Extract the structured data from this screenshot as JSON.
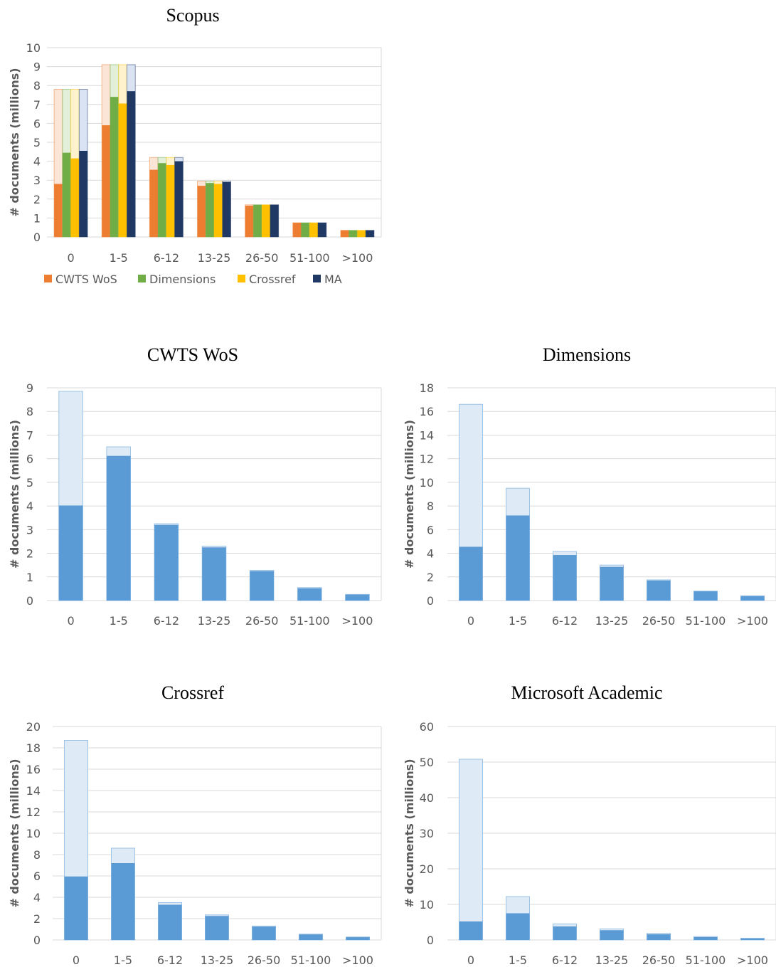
{
  "chart_data": [
    {
      "id": "scopus",
      "type": "bar",
      "title": "Scopus",
      "ylabel": "# documents (millions)",
      "xlabel": "",
      "ylim": [
        0,
        10
      ],
      "ystep": 1,
      "grid": true,
      "stacked_overlay": true,
      "categories": [
        "0",
        "1-5",
        "6-12",
        "13-25",
        "26-50",
        "51-100",
        ">100"
      ],
      "total": [
        7.8,
        9.1,
        4.2,
        2.95,
        1.7,
        0.75,
        0.35
      ],
      "series": [
        {
          "name": "CWTS WoS",
          "color": "#ED7D31",
          "light": "#FBE5D6",
          "values": [
            2.8,
            5.9,
            3.55,
            2.7,
            1.65,
            0.75,
            0.35
          ]
        },
        {
          "name": "Dimensions",
          "color": "#70AD47",
          "light": "#E2F0D9",
          "values": [
            4.45,
            7.4,
            3.9,
            2.85,
            1.7,
            0.75,
            0.35
          ]
        },
        {
          "name": "Crossref",
          "color": "#FFC000",
          "light": "#FFF2CC",
          "values": [
            4.15,
            7.05,
            3.8,
            2.8,
            1.7,
            0.75,
            0.35
          ]
        },
        {
          "name": "MA",
          "color": "#203864",
          "light": "#DAE3F3",
          "values": [
            4.55,
            7.7,
            4.0,
            2.9,
            1.7,
            0.75,
            0.35
          ]
        }
      ],
      "legend_position": "bottom"
    },
    {
      "id": "cwts",
      "type": "bar",
      "title": "CWTS WoS",
      "ylabel": "# documents (millions)",
      "xlabel": "",
      "ylim": [
        0,
        9
      ],
      "ystep": 1,
      "grid": true,
      "categories": [
        "0",
        "1-5",
        "6-12",
        "13-25",
        "26-50",
        "51-100",
        ">100"
      ],
      "total": [
        8.85,
        6.5,
        3.25,
        2.3,
        1.28,
        0.55,
        0.26
      ],
      "covered": [
        4.02,
        6.12,
        3.2,
        2.25,
        1.25,
        0.52,
        0.25
      ]
    },
    {
      "id": "dimensions",
      "type": "bar",
      "title": "Dimensions",
      "ylabel": "# documents (millions)",
      "xlabel": "",
      "ylim": [
        0,
        18
      ],
      "ystep": 2,
      "grid": true,
      "categories": [
        "0",
        "1-5",
        "6-12",
        "13-25",
        "26-50",
        "51-100",
        ">100"
      ],
      "total": [
        16.6,
        9.5,
        4.15,
        3.0,
        1.75,
        0.8,
        0.4
      ],
      "covered": [
        4.55,
        7.2,
        3.85,
        2.85,
        1.7,
        0.78,
        0.38
      ]
    },
    {
      "id": "crossref",
      "type": "bar",
      "title": "Crossref",
      "ylabel": "# documents (millions)",
      "xlabel": "",
      "ylim": [
        0,
        20
      ],
      "ystep": 2,
      "grid": true,
      "categories": [
        "0",
        "1-5",
        "6-12",
        "13-25",
        "26-50",
        "51-100",
        ">100"
      ],
      "total": [
        18.7,
        8.6,
        3.5,
        2.35,
        1.3,
        0.55,
        0.28
      ],
      "covered": [
        5.95,
        7.2,
        3.3,
        2.25,
        1.25,
        0.52,
        0.26
      ]
    },
    {
      "id": "ma",
      "type": "bar",
      "title": "Microsoft Academic",
      "ylabel": "# documents (millions)",
      "xlabel": "",
      "ylim": [
        0,
        60
      ],
      "ystep": 10,
      "grid": true,
      "categories": [
        "0",
        "1-5",
        "6-12",
        "13-25",
        "26-50",
        "51-100",
        ">100"
      ],
      "total": [
        50.8,
        12.2,
        4.5,
        3.1,
        1.9,
        0.95,
        0.5
      ],
      "covered": [
        5.2,
        7.5,
        3.8,
        2.75,
        1.6,
        0.8,
        0.4
      ]
    }
  ],
  "colors": {
    "covered": "#5B9BD5",
    "uncovered": "#DEEBF7",
    "uncovered_stroke": "#9DC3E6",
    "grid": "#D9D9D9",
    "tick_text": "#595959"
  }
}
